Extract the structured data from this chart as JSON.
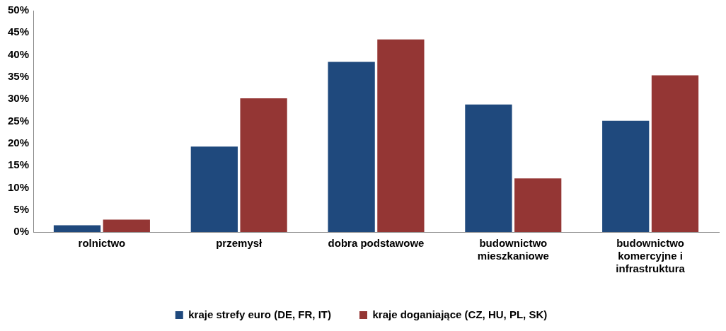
{
  "chart_data": {
    "type": "bar",
    "categories": [
      "rolnictwo",
      "przemysł",
      "dobra podstawowe",
      "budownictwo mieszkaniowe",
      "budownictwo komercyjne i infrastruktura"
    ],
    "series": [
      {
        "name": "kraje strefy euro (DE, FR, IT)",
        "color": "#1f497d",
        "values": [
          1.5,
          19.3,
          38.4,
          28.8,
          25.1
        ]
      },
      {
        "name": "kraje doganiające (CZ, HU, PL, SK)",
        "color": "#943634",
        "values": [
          2.8,
          30.2,
          43.5,
          12.1,
          35.4
        ]
      }
    ],
    "ylim": [
      0,
      50
    ],
    "yticks": [
      {
        "value": 0,
        "label": "0%"
      },
      {
        "value": 5,
        "label": "5%"
      },
      {
        "value": 10,
        "label": "10%"
      },
      {
        "value": 15,
        "label": "15%"
      },
      {
        "value": 20,
        "label": "20%"
      },
      {
        "value": 25,
        "label": "25%"
      },
      {
        "value": 30,
        "label": "30%"
      },
      {
        "value": 35,
        "label": "35%"
      },
      {
        "value": 40,
        "label": "40%"
      },
      {
        "value": 45,
        "label": "45%"
      },
      {
        "value": 50,
        "label": "50%"
      }
    ],
    "grid": false,
    "legend": "bottom"
  }
}
